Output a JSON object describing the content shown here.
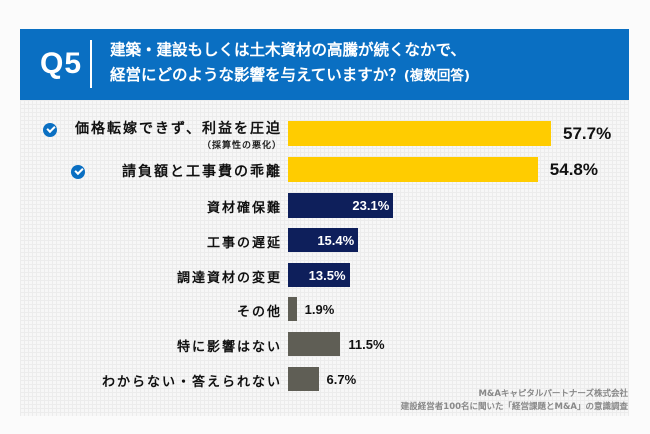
{
  "header": {
    "q_number": "Q5",
    "question_line1": "建築・建設もしくは土木資材の高騰が続くなかで、",
    "question_line2": "経営にどのような影響を与えていますか？",
    "question_suffix": "(複数回答)"
  },
  "colors": {
    "header_bg": "#0a6fc2",
    "highlight": "#ffcc00",
    "primary": "#0e1f5b",
    "other": "#5f5e55",
    "check": "#0a6fc2"
  },
  "chart_data": {
    "type": "bar",
    "orientation": "horizontal",
    "unit": "%",
    "xlim": [
      0,
      60
    ],
    "categories": [
      {
        "label": "価格転嫁できず、利益を圧迫",
        "sublabel": "（採算性の悪化）",
        "value": 57.7,
        "value_label": "57.7%",
        "group": "highlight",
        "checked": true
      },
      {
        "label": "請負額と工事費の乖離",
        "sublabel": null,
        "value": 54.8,
        "value_label": "54.8%",
        "group": "highlight",
        "checked": true
      },
      {
        "label": "資材確保難",
        "sublabel": null,
        "value": 23.1,
        "value_label": "23.1%",
        "group": "primary",
        "checked": false
      },
      {
        "label": "工事の遅延",
        "sublabel": null,
        "value": 15.4,
        "value_label": "15.4%",
        "group": "primary",
        "checked": false
      },
      {
        "label": "調達資材の変更",
        "sublabel": null,
        "value": 13.5,
        "value_label": "13.5%",
        "group": "primary",
        "checked": false
      },
      {
        "label": "その他",
        "sublabel": null,
        "value": 1.9,
        "value_label": "1.9%",
        "group": "other",
        "checked": false
      },
      {
        "label": "特に影響はない",
        "sublabel": null,
        "value": 11.5,
        "value_label": "11.5%",
        "group": "other",
        "checked": false
      },
      {
        "label": "わからない・答えられない",
        "sublabel": null,
        "value": 6.7,
        "value_label": "6.7%",
        "group": "other",
        "checked": false
      }
    ]
  },
  "footer": {
    "line1": "M&Aキャピタルパートナーズ株式会社",
    "line2": "建設経営者100名に聞いた「経営課題とM&A」の意識調査"
  }
}
